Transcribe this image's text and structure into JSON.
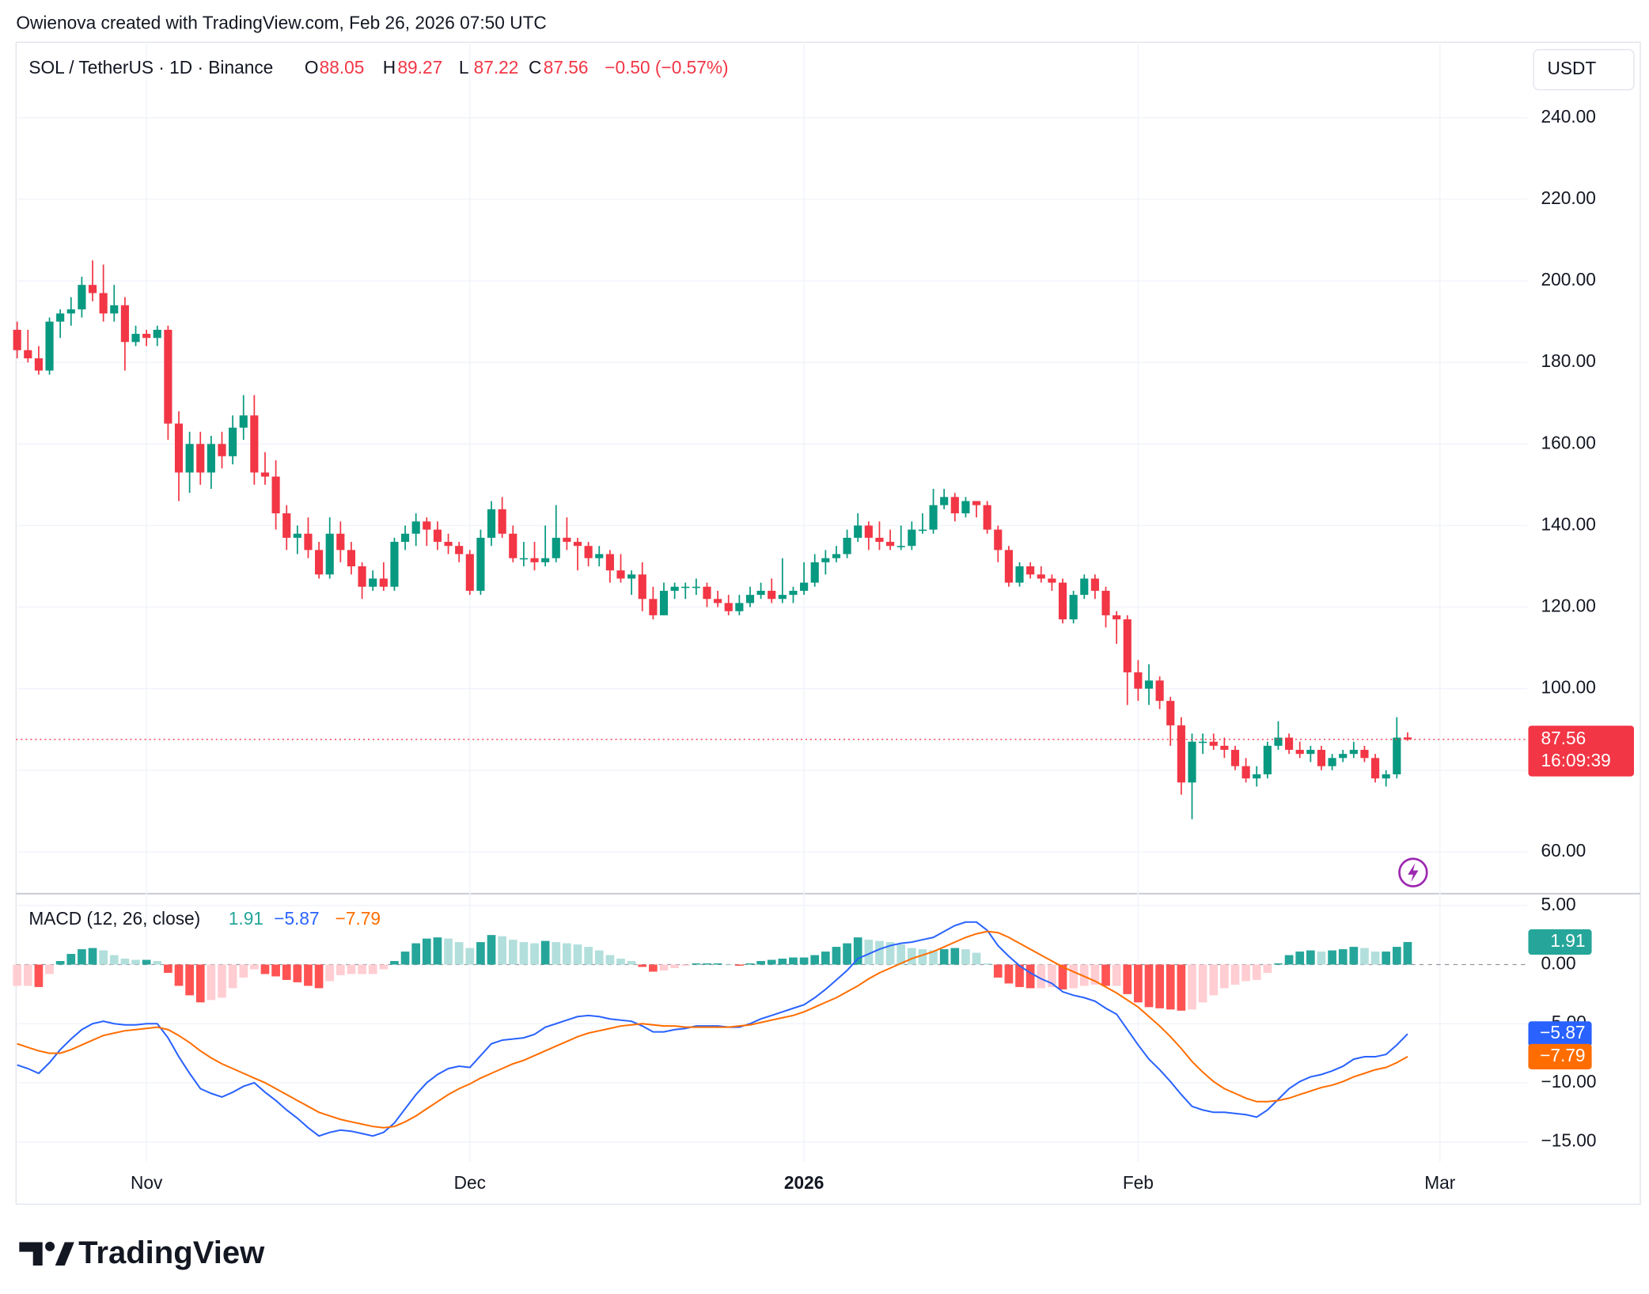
{
  "header": {
    "text": "Owienova created with TradingView.com, Feb 26, 2026 07:50 UTC"
  },
  "brand": {
    "text": "TradingView"
  },
  "chart_data": [
    {
      "type": "candlestick",
      "title": "SOL / TetherUS · 1D · Binance",
      "currency": "USDT",
      "ohlc_letters": [
        "O",
        "H",
        "L",
        "C"
      ],
      "change_label": "−0.50 (−0.57%)",
      "countdown": "16:09:39",
      "up_color": "#089981",
      "down_color": "#f23645",
      "grid": true,
      "x": [
        0,
        1,
        2,
        3,
        4,
        5,
        6,
        7,
        8,
        9,
        10,
        11,
        12,
        13,
        14,
        15,
        16,
        17,
        18,
        19,
        20,
        21,
        22,
        23,
        24,
        25,
        26,
        27,
        28,
        29,
        30,
        31,
        32,
        33,
        34,
        35,
        36,
        37,
        38,
        39,
        40,
        41,
        42,
        43,
        44,
        45,
        46,
        47,
        48,
        49,
        50,
        51,
        52,
        53,
        54,
        55,
        56,
        57,
        58,
        59,
        60,
        61,
        62,
        63,
        64,
        65,
        66,
        67,
        68,
        69,
        70,
        71,
        72,
        73,
        74,
        75,
        76,
        77,
        78,
        79,
        80,
        81,
        82,
        83,
        84,
        85,
        86,
        87,
        88,
        89,
        90,
        91,
        92,
        93,
        94,
        95,
        96,
        97,
        98,
        99,
        100,
        101,
        102,
        103,
        104,
        105,
        106,
        107,
        108,
        109,
        110,
        111,
        112,
        113,
        114,
        115,
        116,
        117,
        118,
        119,
        120,
        121,
        122,
        123,
        124,
        125,
        126,
        127,
        128,
        129
      ],
      "xlim": [
        0,
        140
      ],
      "xticks": [
        {
          "value": 12,
          "label": "Nov"
        },
        {
          "value": 42,
          "label": "Dec"
        },
        {
          "value": 73,
          "label": "2026",
          "bold": true
        },
        {
          "value": 104,
          "label": "Feb"
        },
        {
          "value": 132,
          "label": "Mar"
        }
      ],
      "ylim": [
        50,
        258.5
      ],
      "yticks": [
        {
          "value": 60,
          "label": "60.00"
        },
        {
          "value": 80,
          "label": "80.00"
        },
        {
          "value": 100,
          "label": "100.00"
        },
        {
          "value": 120,
          "label": "120.00"
        },
        {
          "value": 140,
          "label": "140.00"
        },
        {
          "value": 160,
          "label": "160.00"
        },
        {
          "value": 180,
          "label": "180.00"
        },
        {
          "value": 200,
          "label": "200.00"
        },
        {
          "value": 220,
          "label": "220.00"
        },
        {
          "value": 240,
          "label": "240.00"
        }
      ],
      "open": [
        188,
        183,
        181,
        178,
        190,
        192,
        193,
        199,
        197,
        192,
        194,
        185,
        187,
        186,
        188,
        165,
        153,
        160,
        153,
        160,
        157,
        164,
        167,
        153,
        152,
        143,
        137,
        138,
        134,
        128,
        138,
        134,
        130,
        125,
        127,
        125,
        136,
        138,
        141,
        139,
        136,
        135,
        133,
        124,
        137,
        144,
        138,
        132,
        132,
        131,
        132,
        137,
        136,
        135,
        132,
        133,
        129,
        127,
        128,
        122,
        118,
        124,
        125,
        125,
        125,
        122,
        121,
        119,
        121,
        123,
        124,
        122,
        123,
        124,
        126,
        131,
        132,
        133,
        137,
        140,
        137,
        136,
        135,
        135,
        139,
        139,
        145,
        147,
        143,
        146,
        145,
        139,
        134,
        126,
        130,
        128,
        127,
        126,
        117,
        123,
        127,
        124,
        118,
        117,
        104,
        100,
        102,
        97,
        91,
        77,
        87,
        87,
        86,
        85,
        81,
        78,
        79,
        86,
        88,
        85,
        84,
        85,
        81,
        83,
        84,
        85,
        83,
        78,
        79,
        88.05
      ],
      "high": [
        190,
        188,
        184,
        191,
        193,
        196,
        201,
        205,
        204,
        199,
        196,
        189,
        188,
        189,
        189,
        168,
        163,
        163,
        162,
        163,
        167,
        172,
        172,
        158,
        156,
        145,
        140,
        142,
        136,
        142,
        141,
        136,
        131,
        129,
        131,
        137,
        140,
        143,
        142,
        141,
        138,
        136,
        134,
        139,
        146,
        147,
        140,
        136,
        136,
        140,
        145,
        142,
        137,
        136,
        135,
        134,
        133,
        129,
        131,
        125,
        126,
        126,
        126,
        127,
        126,
        124,
        123,
        123,
        125,
        126,
        127,
        132,
        125,
        131,
        133,
        134,
        135,
        139,
        143,
        141,
        141,
        139,
        140,
        141,
        143,
        149,
        149,
        148,
        147,
        146,
        146,
        140,
        135,
        131,
        131,
        130,
        128,
        127,
        124,
        128,
        128,
        125,
        119,
        118,
        107,
        106,
        103,
        98,
        93,
        89,
        89,
        89,
        88,
        86,
        83,
        81,
        87,
        92,
        89,
        87,
        86,
        86,
        84,
        85,
        87,
        86,
        84,
        80,
        93,
        89.27
      ],
      "low": [
        181,
        180,
        177,
        177,
        186,
        189,
        191,
        195,
        190,
        190,
        178,
        184,
        184,
        184,
        161,
        146,
        148,
        150,
        149,
        154,
        155,
        161,
        150,
        150,
        139,
        134,
        133,
        132,
        127,
        127,
        131,
        128,
        122,
        124,
        124,
        124,
        134,
        135,
        135,
        134,
        133,
        131,
        123,
        123,
        135,
        137,
        131,
        130,
        129,
        130,
        131,
        134,
        129,
        130,
        130,
        126,
        126,
        123,
        119,
        117,
        118,
        122,
        122,
        123,
        120,
        120,
        118,
        118,
        120,
        122,
        121,
        121,
        121,
        123,
        125,
        128,
        131,
        132,
        136,
        134,
        134,
        134,
        134,
        134,
        138,
        138,
        144,
        141,
        142,
        142,
        138,
        131,
        125,
        125,
        127,
        126,
        124,
        116,
        116,
        122,
        122,
        115,
        111,
        96,
        97,
        96,
        95,
        86,
        74,
        68,
        84,
        85,
        83,
        80,
        77,
        76,
        78,
        85,
        84,
        83,
        82,
        80,
        80,
        82,
        83,
        82,
        77,
        76,
        78,
        87.22
      ],
      "close": [
        183,
        181,
        178,
        190,
        192,
        193,
        199,
        197,
        192,
        194,
        185,
        187,
        186,
        188,
        165,
        153,
        160,
        153,
        160,
        157,
        164,
        167,
        153,
        152,
        143,
        137,
        138,
        134,
        128,
        138,
        134,
        130,
        125,
        127,
        125,
        136,
        138,
        141,
        139,
        136,
        135,
        133,
        124,
        137,
        144,
        138,
        132,
        132,
        131,
        132,
        137,
        136,
        135,
        132,
        133,
        129,
        127,
        128,
        122,
        118,
        124,
        125,
        125,
        125,
        122,
        121,
        119,
        121,
        123,
        124,
        122,
        123,
        124,
        126,
        131,
        132,
        133,
        137,
        140,
        137,
        136,
        135,
        135,
        139,
        139,
        145,
        147,
        143,
        146,
        145,
        139,
        134,
        126,
        130,
        128,
        127,
        126,
        117,
        123,
        127,
        124,
        118,
        117,
        104,
        100,
        102,
        97,
        91,
        77,
        87,
        87,
        86,
        85,
        81,
        78,
        79,
        86,
        88,
        85,
        84,
        85,
        81,
        83,
        84,
        85,
        83,
        78,
        79,
        88,
        87.56
      ]
    },
    {
      "type": "macd",
      "title": "MACD (12, 26, close)",
      "ylim": [
        -16.7,
        6
      ],
      "zero_line": true,
      "yticks": [
        {
          "value": 5,
          "label": "5.00"
        },
        {
          "value": 0,
          "label": "0.00"
        },
        {
          "value": -5,
          "label": "−5.00"
        },
        {
          "value": -10,
          "label": "−10.00"
        },
        {
          "value": -15,
          "label": "−15.00"
        }
      ],
      "series": [
        {
          "kind": "histogram",
          "colors": [
            "#26a69a",
            "#b2dfdb",
            "#ff5252",
            "#ffcdd2"
          ],
          "last_label": "1.91",
          "values": [
            -1.8,
            -1.8,
            -1.9,
            -0.8,
            0.3,
            0.9,
            1.3,
            1.4,
            1.2,
            0.8,
            0.5,
            0.4,
            0.4,
            0.3,
            -0.7,
            -1.8,
            -2.6,
            -3.2,
            -3.0,
            -2.8,
            -2.0,
            -1.1,
            -0.4,
            -0.8,
            -1.0,
            -1.3,
            -1.5,
            -1.8,
            -2.0,
            -1.4,
            -0.9,
            -0.8,
            -0.8,
            -0.8,
            -0.4,
            0.3,
            1.1,
            1.8,
            2.2,
            2.3,
            2.2,
            1.9,
            1.4,
            1.9,
            2.5,
            2.4,
            2.1,
            1.9,
            1.8,
            2.0,
            1.9,
            1.8,
            1.7,
            1.5,
            1.2,
            0.8,
            0.5,
            0.3,
            -0.2,
            -0.6,
            -0.5,
            -0.3,
            -0.1,
            0.1,
            0.1,
            0.1,
            0,
            -0.1,
            0.1,
            0.3,
            0.4,
            0.5,
            0.6,
            0.6,
            0.8,
            1.1,
            1.5,
            1.8,
            2.3,
            2.1,
            2.0,
            1.9,
            1.7,
            1.4,
            1.3,
            1.2,
            1.3,
            1.4,
            1.3,
            1.0,
            0.1,
            -1.1,
            -1.6,
            -1.9,
            -2.0,
            -2.0,
            -1.9,
            -2.1,
            -2.0,
            -1.8,
            -1.7,
            -1.8,
            -1.8,
            -2.5,
            -3.2,
            -3.6,
            -3.7,
            -3.8,
            -3.9,
            -3.8,
            -3.2,
            -2.6,
            -2.0,
            -1.7,
            -1.4,
            -1.3,
            -0.7,
            0.1,
            0.8,
            1.1,
            1.2,
            1.1,
            1.2,
            1.3,
            1.5,
            1.4,
            1.1,
            1.1,
            1.5,
            1.91
          ]
        },
        {
          "kind": "line",
          "color": "#2962ff",
          "last_label": "−5.87",
          "values": [
            -8.5,
            -8.8,
            -9.2,
            -8.3,
            -7.2,
            -6.3,
            -5.5,
            -5.0,
            -4.8,
            -5.0,
            -5.1,
            -5.1,
            -5.0,
            -5.0,
            -6.2,
            -7.8,
            -9.2,
            -10.5,
            -10.9,
            -11.2,
            -10.8,
            -10.3,
            -10.0,
            -10.8,
            -11.5,
            -12.3,
            -13.0,
            -13.8,
            -14.5,
            -14.2,
            -14.0,
            -14.1,
            -14.3,
            -14.5,
            -14.2,
            -13.4,
            -12.2,
            -11.0,
            -10.0,
            -9.3,
            -8.8,
            -8.6,
            -8.7,
            -7.7,
            -6.7,
            -6.4,
            -6.3,
            -6.2,
            -5.9,
            -5.3,
            -5.0,
            -4.7,
            -4.4,
            -4.3,
            -4.4,
            -4.6,
            -4.7,
            -4.8,
            -5.2,
            -5.7,
            -5.7,
            -5.5,
            -5.4,
            -5.2,
            -5.2,
            -5.2,
            -5.3,
            -5.3,
            -5.0,
            -4.6,
            -4.3,
            -4.0,
            -3.7,
            -3.4,
            -2.8,
            -2.1,
            -1.3,
            -0.5,
            0.5,
            0.9,
            1.3,
            1.6,
            1.8,
            1.9,
            2.1,
            2.3,
            2.8,
            3.3,
            3.6,
            3.6,
            2.9,
            1.6,
            0.7,
            -0.1,
            -0.7,
            -1.2,
            -1.6,
            -2.3,
            -2.6,
            -2.8,
            -3.1,
            -3.7,
            -4.2,
            -5.5,
            -6.8,
            -8.0,
            -8.9,
            -9.9,
            -11.0,
            -12.0,
            -12.3,
            -12.5,
            -12.5,
            -12.6,
            -12.7,
            -12.9,
            -12.3,
            -11.4,
            -10.5,
            -9.9,
            -9.5,
            -9.3,
            -9.0,
            -8.6,
            -8.0,
            -7.8,
            -7.8,
            -7.6,
            -6.8,
            -5.87
          ]
        },
        {
          "kind": "line",
          "color": "#ff6d00",
          "last_label": "−7.79",
          "values": [
            -6.7,
            -7.0,
            -7.3,
            -7.5,
            -7.5,
            -7.2,
            -6.8,
            -6.4,
            -6.0,
            -5.8,
            -5.6,
            -5.5,
            -5.4,
            -5.3,
            -5.5,
            -6.0,
            -6.6,
            -7.3,
            -7.9,
            -8.4,
            -8.8,
            -9.2,
            -9.6,
            -10.0,
            -10.5,
            -11.0,
            -11.5,
            -12.0,
            -12.5,
            -12.8,
            -13.1,
            -13.3,
            -13.5,
            -13.7,
            -13.8,
            -13.7,
            -13.3,
            -12.8,
            -12.2,
            -11.6,
            -11.0,
            -10.5,
            -10.1,
            -9.6,
            -9.2,
            -8.8,
            -8.4,
            -8.1,
            -7.7,
            -7.3,
            -6.9,
            -6.5,
            -6.1,
            -5.8,
            -5.6,
            -5.4,
            -5.2,
            -5.1,
            -5.0,
            -5.1,
            -5.2,
            -5.2,
            -5.3,
            -5.3,
            -5.3,
            -5.3,
            -5.3,
            -5.2,
            -5.1,
            -4.9,
            -4.7,
            -4.5,
            -4.3,
            -4.0,
            -3.6,
            -3.2,
            -2.8,
            -2.3,
            -1.8,
            -1.2,
            -0.7,
            -0.3,
            0.1,
            0.5,
            0.8,
            1.1,
            1.5,
            1.9,
            2.3,
            2.6,
            2.8,
            2.7,
            2.3,
            1.8,
            1.3,
            0.8,
            0.3,
            -0.2,
            -0.6,
            -1.0,
            -1.4,
            -1.9,
            -2.4,
            -3.0,
            -3.6,
            -4.4,
            -5.2,
            -6.1,
            -7.1,
            -8.2,
            -9.1,
            -9.9,
            -10.5,
            -10.9,
            -11.3,
            -11.6,
            -11.6,
            -11.5,
            -11.3,
            -11.0,
            -10.7,
            -10.4,
            -10.2,
            -9.9,
            -9.5,
            -9.2,
            -8.9,
            -8.7,
            -8.3,
            -7.79
          ]
        }
      ]
    }
  ]
}
